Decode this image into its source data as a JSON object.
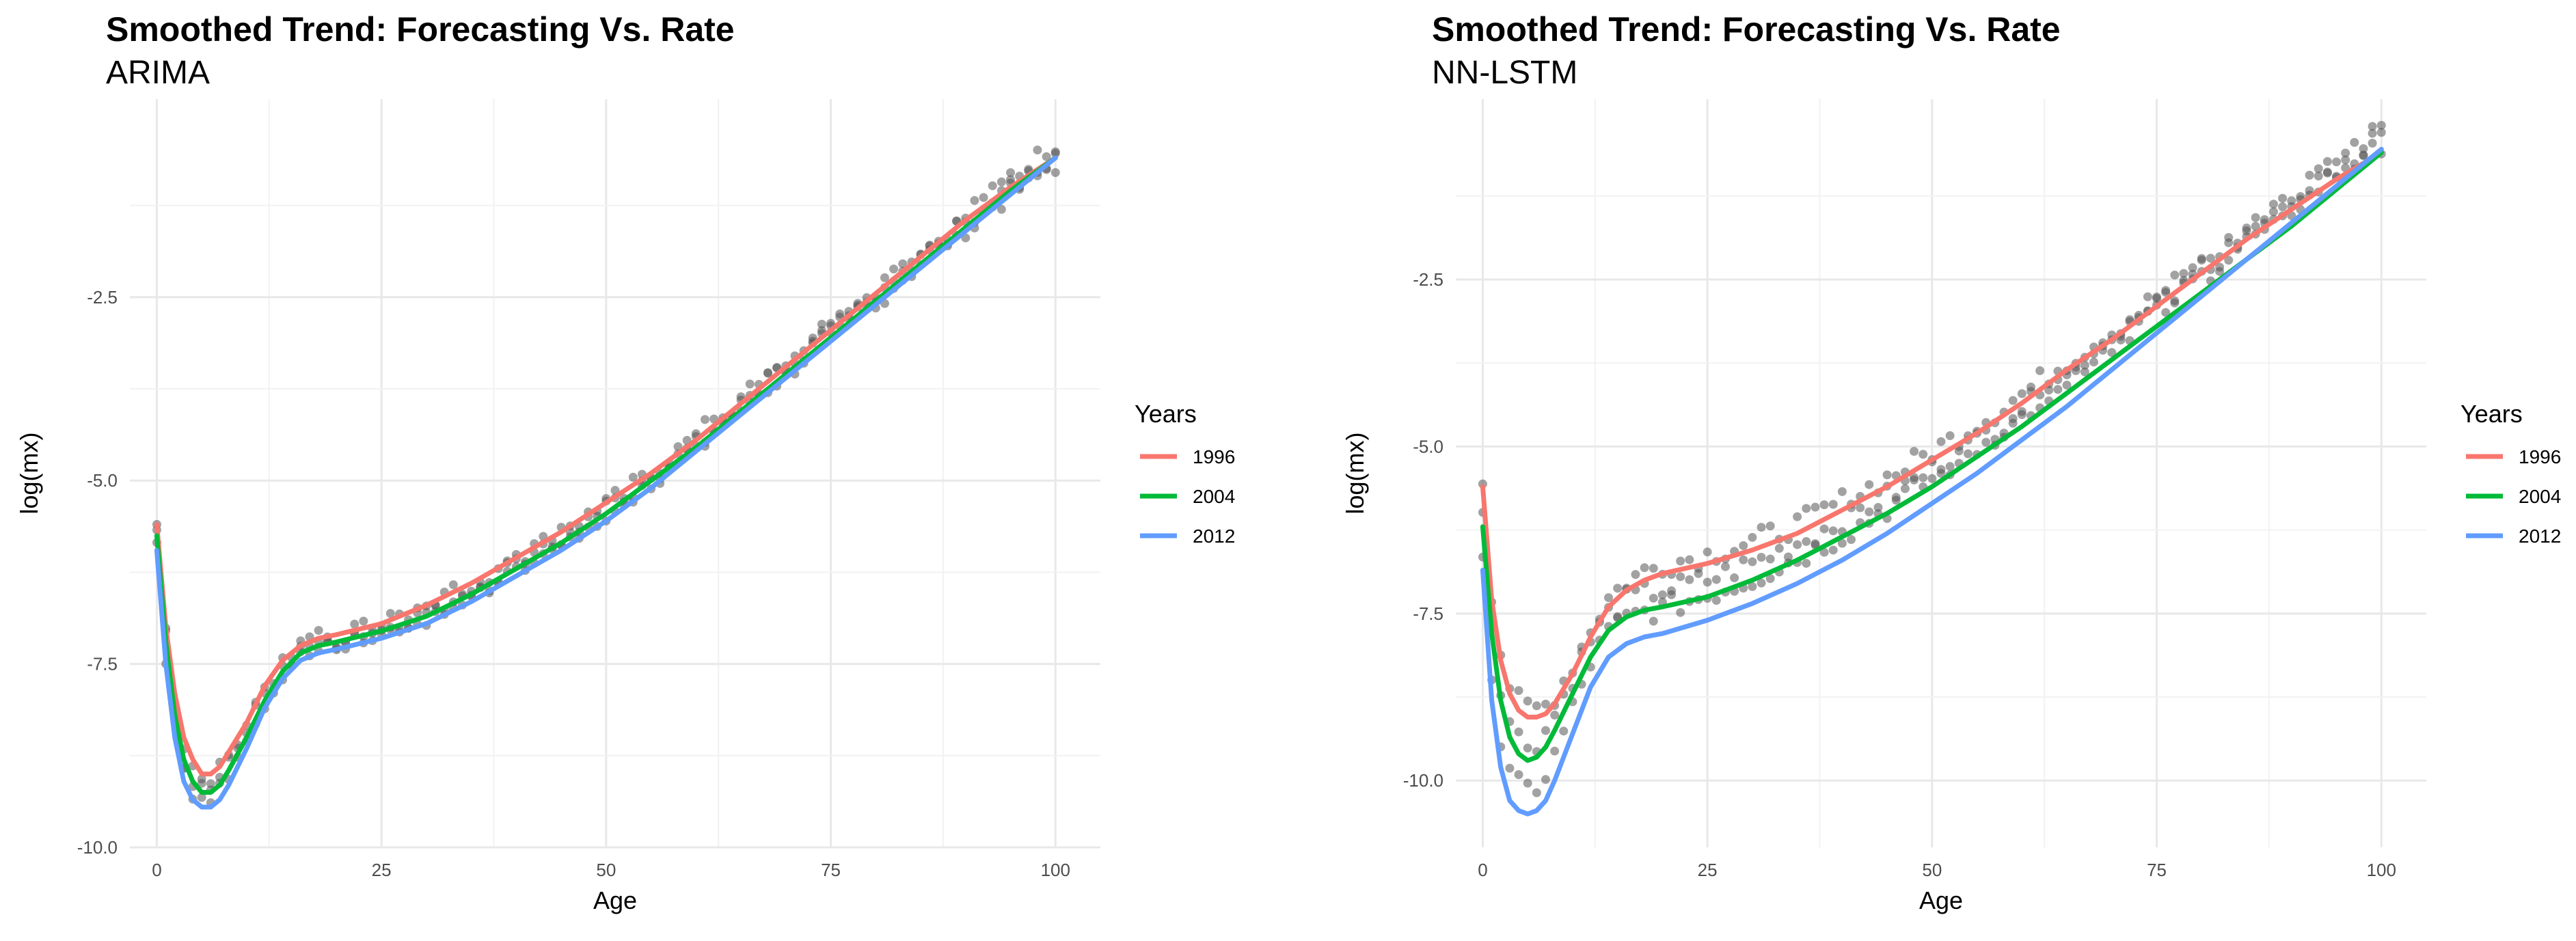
{
  "chart_data": [
    {
      "type": "line",
      "title": "Smoothed Trend: Forecasting Vs. Rate",
      "subtitle": "ARIMA",
      "xlabel": "Age",
      "ylabel": "log(mx)",
      "xlim": [
        -3,
        105
      ],
      "ylim": [
        -10.0,
        0.2
      ],
      "xticks": [
        0,
        25,
        50,
        75,
        100
      ],
      "xtick_labels": [
        "0",
        "25",
        "50",
        "75",
        "100"
      ],
      "yticks": [
        -2.5,
        -5.0,
        -7.5,
        -10.0
      ],
      "ytick_labels": [
        "-2.5",
        "-5.0",
        "-7.5",
        "-10.0"
      ],
      "legend": {
        "title": "Years",
        "position": "right"
      },
      "series": [
        {
          "name": "1996",
          "color": "#F8766D",
          "x": [
            0,
            1,
            2,
            3,
            4,
            5,
            6,
            7,
            8,
            10,
            12,
            14,
            16,
            18,
            20,
            25,
            30,
            35,
            40,
            45,
            50,
            55,
            60,
            65,
            70,
            75,
            80,
            85,
            90,
            95,
            100
          ],
          "y": [
            -5.6,
            -7.0,
            -7.9,
            -8.5,
            -8.8,
            -9.0,
            -9.0,
            -8.9,
            -8.7,
            -8.3,
            -7.8,
            -7.45,
            -7.25,
            -7.15,
            -7.1,
            -6.95,
            -6.7,
            -6.4,
            -6.05,
            -5.7,
            -5.3,
            -4.9,
            -4.45,
            -3.95,
            -3.45,
            -2.95,
            -2.45,
            -1.95,
            -1.45,
            -1.0,
            -0.6
          ]
        },
        {
          "name": "2004",
          "color": "#00BA38",
          "x": [
            0,
            1,
            2,
            3,
            4,
            5,
            6,
            7,
            8,
            10,
            12,
            14,
            16,
            18,
            20,
            25,
            30,
            35,
            40,
            45,
            50,
            55,
            60,
            65,
            70,
            75,
            80,
            85,
            90,
            95,
            100
          ],
          "y": [
            -5.75,
            -7.2,
            -8.2,
            -8.8,
            -9.1,
            -9.25,
            -9.25,
            -9.15,
            -8.95,
            -8.5,
            -8.0,
            -7.6,
            -7.35,
            -7.25,
            -7.2,
            -7.05,
            -6.85,
            -6.55,
            -6.2,
            -5.85,
            -5.45,
            -5.0,
            -4.55,
            -4.05,
            -3.55,
            -3.05,
            -2.55,
            -2.05,
            -1.55,
            -1.05,
            -0.6
          ]
        },
        {
          "name": "2012",
          "color": "#619CFF",
          "x": [
            0,
            1,
            2,
            3,
            4,
            5,
            6,
            7,
            8,
            10,
            12,
            14,
            16,
            18,
            20,
            25,
            30,
            35,
            40,
            45,
            50,
            55,
            60,
            65,
            70,
            75,
            80,
            85,
            90,
            95,
            100
          ],
          "y": [
            -5.95,
            -7.5,
            -8.5,
            -9.1,
            -9.35,
            -9.45,
            -9.45,
            -9.35,
            -9.15,
            -8.65,
            -8.1,
            -7.7,
            -7.45,
            -7.35,
            -7.3,
            -7.15,
            -6.95,
            -6.65,
            -6.3,
            -5.95,
            -5.55,
            -5.1,
            -4.6,
            -4.1,
            -3.6,
            -3.1,
            -2.6,
            -2.1,
            -1.6,
            -1.1,
            -0.6
          ]
        }
      ]
    },
    {
      "type": "line",
      "title": "Smoothed Trend: Forecasting Vs. Rate",
      "subtitle": "NN-LSTM",
      "xlabel": "Age",
      "ylabel": "log(mx)",
      "xlim": [
        -3,
        105
      ],
      "ylim": [
        -11.0,
        0.2
      ],
      "xticks": [
        0,
        25,
        50,
        75,
        100
      ],
      "xtick_labels": [
        "0",
        "25",
        "50",
        "75",
        "100"
      ],
      "yticks": [
        -2.5,
        -5.0,
        -7.5,
        -10.0
      ],
      "ytick_labels": [
        "-2.5",
        "-5.0",
        "-7.5",
        "-10.0"
      ],
      "legend": {
        "title": "Years",
        "position": "right"
      },
      "series": [
        {
          "name": "1996",
          "color": "#F8766D",
          "x": [
            0,
            1,
            2,
            3,
            4,
            5,
            6,
            7,
            8,
            10,
            12,
            14,
            16,
            18,
            20,
            25,
            30,
            35,
            40,
            45,
            50,
            55,
            60,
            65,
            70,
            75,
            80,
            85,
            90,
            95,
            100
          ],
          "y": [
            -5.6,
            -7.3,
            -8.2,
            -8.7,
            -8.95,
            -9.05,
            -9.05,
            -9.0,
            -8.85,
            -8.4,
            -7.85,
            -7.4,
            -7.15,
            -7.0,
            -6.9,
            -6.75,
            -6.55,
            -6.3,
            -5.95,
            -5.6,
            -5.2,
            -4.8,
            -4.35,
            -3.85,
            -3.4,
            -2.9,
            -2.4,
            -1.9,
            -1.45,
            -1.0,
            -0.6
          ]
        },
        {
          "name": "2004",
          "color": "#00BA38",
          "x": [
            0,
            1,
            2,
            3,
            4,
            5,
            6,
            7,
            8,
            10,
            12,
            14,
            16,
            18,
            20,
            25,
            30,
            35,
            40,
            45,
            50,
            55,
            60,
            65,
            70,
            75,
            80,
            85,
            90,
            95,
            100
          ],
          "y": [
            -6.2,
            -7.8,
            -8.8,
            -9.35,
            -9.6,
            -9.7,
            -9.65,
            -9.5,
            -9.25,
            -8.7,
            -8.15,
            -7.75,
            -7.55,
            -7.45,
            -7.4,
            -7.25,
            -7.0,
            -6.7,
            -6.35,
            -6.0,
            -5.6,
            -5.15,
            -4.7,
            -4.2,
            -3.7,
            -3.2,
            -2.7,
            -2.2,
            -1.7,
            -1.15,
            -0.6
          ]
        },
        {
          "name": "2012",
          "color": "#619CFF",
          "x": [
            0,
            1,
            2,
            3,
            4,
            5,
            6,
            7,
            8,
            10,
            12,
            14,
            16,
            18,
            20,
            25,
            30,
            35,
            40,
            45,
            50,
            55,
            60,
            65,
            70,
            75,
            80,
            85,
            90,
            95,
            100
          ],
          "y": [
            -6.85,
            -8.8,
            -9.8,
            -10.3,
            -10.45,
            -10.5,
            -10.45,
            -10.3,
            -10.0,
            -9.3,
            -8.6,
            -8.15,
            -7.95,
            -7.85,
            -7.8,
            -7.6,
            -7.35,
            -7.05,
            -6.7,
            -6.3,
            -5.85,
            -5.4,
            -4.9,
            -4.4,
            -3.85,
            -3.3,
            -2.75,
            -2.2,
            -1.65,
            -1.1,
            -0.55
          ]
        }
      ]
    }
  ]
}
